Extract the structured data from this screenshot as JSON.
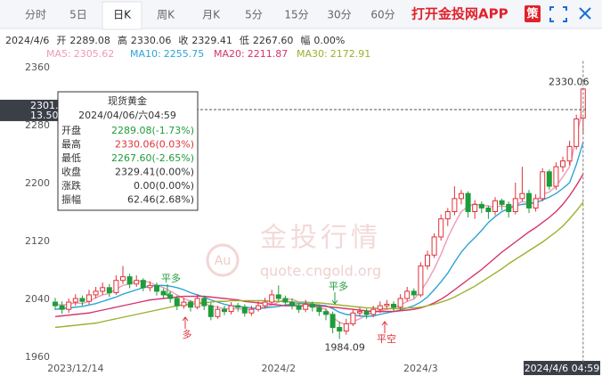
{
  "tabs": {
    "items": [
      "分时",
      "5日",
      "日K",
      "周K",
      "月K",
      "5分",
      "15分",
      "30分",
      "60分"
    ],
    "active": 2,
    "app_link": "打开金投网APP",
    "strategy": "策"
  },
  "chart_data": {
    "type": "candlestick",
    "header": {
      "date": "2024/4/6",
      "items": [
        {
          "label": "开",
          "value": "2289.08"
        },
        {
          "label": "高",
          "value": "2330.06"
        },
        {
          "label": "收",
          "value": "2329.41"
        },
        {
          "label": "低",
          "value": "2267.60"
        },
        {
          "label": "幅",
          "value": "0.00%"
        }
      ]
    },
    "categories": [
      null,
      null,
      null,
      "2023/12/14",
      null,
      null,
      null,
      null,
      null,
      null,
      null,
      null,
      null,
      null,
      null,
      null,
      null,
      null,
      null,
      null,
      null,
      null,
      null,
      null,
      null,
      null,
      null,
      null,
      null,
      null,
      null,
      null,
      null,
      "2024/2",
      null,
      null,
      null,
      null,
      null,
      null,
      null,
      null,
      null,
      null,
      null,
      null,
      null,
      null,
      null,
      null,
      null,
      null,
      null,
      null,
      "2024/3",
      null,
      null,
      null,
      null,
      null,
      null,
      null,
      null,
      null,
      null,
      null,
      null,
      null,
      null,
      null,
      null,
      null,
      null,
      null,
      null,
      null,
      null,
      null,
      "2024/4/6 04:59"
    ],
    "candles": [
      [
        2035,
        2041,
        2024,
        2030
      ],
      [
        2030,
        2036,
        2019,
        2025
      ],
      [
        2025,
        2040,
        2020,
        2035
      ],
      [
        2035,
        2046,
        2030,
        2040
      ],
      [
        2040,
        2044,
        2030,
        2036
      ],
      [
        2036,
        2052,
        2032,
        2045
      ],
      [
        2045,
        2056,
        2040,
        2050
      ],
      [
        2050,
        2062,
        2045,
        2055
      ],
      [
        2055,
        2060,
        2042,
        2048
      ],
      [
        2048,
        2072,
        2045,
        2065
      ],
      [
        2065,
        2085,
        2060,
        2070
      ],
      [
        2070,
        2074,
        2054,
        2060
      ],
      [
        2060,
        2072,
        2056,
        2065
      ],
      [
        2065,
        2068,
        2050,
        2055
      ],
      [
        2055,
        2064,
        2050,
        2058
      ],
      [
        2058,
        2062,
        2044,
        2050
      ],
      [
        2050,
        2054,
        2040,
        2045
      ],
      [
        2045,
        2050,
        2034,
        2040
      ],
      [
        2040,
        2044,
        2024,
        2030
      ],
      [
        2030,
        2041,
        2026,
        2035
      ],
      [
        2035,
        2038,
        2022,
        2028
      ],
      [
        2028,
        2046,
        2025,
        2040
      ],
      [
        2040,
        2044,
        2024,
        2030
      ],
      [
        2030,
        2034,
        2010,
        2015
      ],
      [
        2015,
        2030,
        2012,
        2025
      ],
      [
        2025,
        2030,
        2017,
        2022
      ],
      [
        2022,
        2035,
        2018,
        2030
      ],
      [
        2030,
        2034,
        2022,
        2028
      ],
      [
        2028,
        2032,
        2015,
        2020
      ],
      [
        2020,
        2030,
        2016,
        2025
      ],
      [
        2025,
        2036,
        2022,
        2030
      ],
      [
        2030,
        2041,
        2026,
        2035
      ],
      [
        2035,
        2052,
        2031,
        2045
      ],
      [
        2045,
        2058,
        2036,
        2040
      ],
      [
        2040,
        2044,
        2030,
        2035
      ],
      [
        2035,
        2040,
        2025,
        2030
      ],
      [
        2030,
        2034,
        2020,
        2025
      ],
      [
        2025,
        2038,
        2021,
        2032
      ],
      [
        2032,
        2036,
        2022,
        2028
      ],
      [
        2028,
        2032,
        2016,
        2022
      ],
      [
        2022,
        2026,
        2010,
        2018
      ],
      [
        2018,
        2022,
        1992,
        2000
      ],
      [
        2000,
        2008,
        1984.09,
        1995
      ],
      [
        1995,
        2012,
        1990,
        2005
      ],
      [
        2005,
        2026,
        2002,
        2020
      ],
      [
        2020,
        2028,
        2015,
        2022
      ],
      [
        2022,
        2026,
        2012,
        2018
      ],
      [
        2018,
        2030,
        2014,
        2025
      ],
      [
        2025,
        2036,
        2020,
        2030
      ],
      [
        2030,
        2038,
        2026,
        2032
      ],
      [
        2032,
        2036,
        2022,
        2028
      ],
      [
        2028,
        2046,
        2024,
        2040
      ],
      [
        2040,
        2056,
        2036,
        2050
      ],
      [
        2050,
        2054,
        2040,
        2045
      ],
      [
        2045,
        2090,
        2042,
        2085
      ],
      [
        2085,
        2106,
        2080,
        2100
      ],
      [
        2100,
        2130,
        2096,
        2125
      ],
      [
        2125,
        2156,
        2120,
        2150
      ],
      [
        2150,
        2165,
        2140,
        2160
      ],
      [
        2160,
        2195,
        2155,
        2178
      ],
      [
        2178,
        2190,
        2170,
        2185
      ],
      [
        2185,
        2188,
        2152,
        2160
      ],
      [
        2160,
        2176,
        2150,
        2170
      ],
      [
        2170,
        2174,
        2158,
        2165
      ],
      [
        2165,
        2168,
        2150,
        2160
      ],
      [
        2160,
        2180,
        2155,
        2175
      ],
      [
        2175,
        2178,
        2162,
        2170
      ],
      [
        2170,
        2174,
        2152,
        2160
      ],
      [
        2160,
        2200,
        2156,
        2178
      ],
      [
        2178,
        2222,
        2174,
        2185
      ],
      [
        2185,
        2190,
        2158,
        2165
      ],
      [
        2165,
        2184,
        2160,
        2178
      ],
      [
        2178,
        2220,
        2174,
        2215
      ],
      [
        2215,
        2218,
        2190,
        2195
      ],
      [
        2195,
        2228,
        2190,
        2222
      ],
      [
        2222,
        2236,
        2215,
        2230
      ],
      [
        2230,
        2258,
        2224,
        2250
      ],
      [
        2250,
        2294,
        2246,
        2288
      ],
      [
        2289.08,
        2330.06,
        2267.6,
        2329.41
      ]
    ],
    "up_color": "#e0323a",
    "down_color": "#1f9c3b",
    "series": [
      {
        "name": "MA5:",
        "color": "#ee9ab6",
        "values": [
          2032,
          2031,
          2032,
          2034,
          2033,
          2036,
          2041,
          2045,
          2047,
          2053,
          2058,
          2060,
          2064,
          2064,
          2062,
          2058,
          2055,
          2050,
          2045,
          2040,
          2036,
          2035,
          2033,
          2030,
          2028,
          2026,
          2026,
          2026,
          2025,
          2025,
          2027,
          2028,
          2031,
          2035,
          2039,
          2039,
          2035,
          2032,
          2030,
          2027,
          2025,
          2014,
          2007,
          2004,
          2008,
          2012,
          2017,
          2022,
          2023,
          2025,
          2027,
          2031,
          2036,
          2039,
          2050,
          2064,
          2081,
          2101,
          2124,
          2143,
          2160,
          2167,
          2171,
          2168,
          2168,
          2166,
          2168,
          2166,
          2169,
          2174,
          2172,
          2173,
          2184,
          2187,
          2195,
          2208,
          2222,
          2262,
          2305.62
        ]
      },
      {
        "name": "MA10:",
        "color": "#2ea3d6",
        "values": [
          2025,
          2026,
          2027,
          2028,
          2029,
          2031,
          2033,
          2036,
          2039,
          2042,
          2046,
          2049,
          2052,
          2055,
          2057,
          2058,
          2058,
          2057,
          2055,
          2052,
          2048,
          2045,
          2042,
          2038,
          2035,
          2032,
          2030,
          2029,
          2028,
          2027,
          2026,
          2027,
          2028,
          2029,
          2031,
          2032,
          2033,
          2033,
          2032,
          2031,
          2030,
          2026,
          2021,
          2018,
          2017,
          2016,
          2015,
          2016,
          2018,
          2020,
          2022,
          2024,
          2027,
          2030,
          2035,
          2042,
          2052,
          2063,
          2075,
          2090,
          2104,
          2115,
          2124,
          2134,
          2145,
          2153,
          2160,
          2164,
          2168,
          2170,
          2171,
          2172,
          2176,
          2180,
          2185,
          2192,
          2200,
          2225,
          2255.75
        ]
      },
      {
        "name": "MA20:",
        "color": "#d6336a",
        "values": [
          2015,
          2016,
          2017,
          2018,
          2019,
          2020,
          2022,
          2024,
          2026,
          2028,
          2030,
          2032,
          2034,
          2036,
          2038,
          2039,
          2040,
          2041,
          2042,
          2043,
          2043,
          2043,
          2043,
          2042,
          2041,
          2040,
          2039,
          2038,
          2036,
          2035,
          2034,
          2033,
          2032,
          2031,
          2030,
          2030,
          2030,
          2030,
          2030,
          2030,
          2029,
          2028,
          2027,
          2026,
          2025,
          2024,
          2023,
          2022,
          2022,
          2022,
          2022,
          2023,
          2024,
          2025,
          2027,
          2030,
          2034,
          2039,
          2045,
          2052,
          2059,
          2066,
          2073,
          2080,
          2088,
          2096,
          2104,
          2111,
          2118,
          2125,
          2132,
          2138,
          2145,
          2152,
          2160,
          2170,
          2182,
          2196,
          2211.87
        ]
      },
      {
        "name": "MA30:",
        "color": "#9cb02c",
        "values": [
          2000,
          2001,
          2002,
          2003,
          2004,
          2005,
          2006,
          2008,
          2010,
          2012,
          2014,
          2016,
          2018,
          2020,
          2022,
          2024,
          2026,
          2028,
          2030,
          2031,
          2032,
          2033,
          2034,
          2035,
          2036,
          2036,
          2037,
          2037,
          2037,
          2037,
          2037,
          2037,
          2036,
          2036,
          2036,
          2035,
          2035,
          2035,
          2034,
          2034,
          2033,
          2032,
          2031,
          2030,
          2029,
          2028,
          2027,
          2027,
          2026,
          2026,
          2026,
          2026,
          2027,
          2027,
          2028,
          2030,
          2032,
          2035,
          2038,
          2042,
          2047,
          2052,
          2057,
          2063,
          2069,
          2075,
          2081,
          2088,
          2094,
          2100,
          2106,
          2112,
          2118,
          2125,
          2132,
          2140,
          2150,
          2161,
          2172.91
        ]
      }
    ],
    "ylim": [
      1952,
      2368
    ],
    "yticks": [
      1960,
      2040,
      2120,
      2200,
      2280,
      2360
    ],
    "crosshair": {
      "price": {
        "value": 2301.0,
        "label": "2301.0"
      },
      "change": "13.50"
    },
    "annotations": [
      {
        "text": "平多",
        "color": "#1f9c3b"
      },
      {
        "text": "多",
        "color": "#e0323a"
      },
      {
        "text": "平多",
        "color": "#1f9c3b"
      },
      {
        "text": "平空",
        "color": "#e0323a"
      }
    ],
    "tooltip": {
      "title": "现货黄金",
      "date": "2024/04/06/六04:59",
      "rows": [
        {
          "label": "开盘",
          "value": "2289.08(-1.73%)",
          "color": "#1f9c3b"
        },
        {
          "label": "最高",
          "value": "2330.06(0.03%)",
          "color": "#e0323a"
        },
        {
          "label": "最低",
          "value": "2267.60(-2.65%)",
          "color": "#1f9c3b"
        },
        {
          "label": "收盘",
          "value": "2329.41(0.00%)",
          "color": "#333333"
        },
        {
          "label": "涨跌",
          "value": "0.00(0.00%)",
          "color": "#333333"
        },
        {
          "label": "振幅",
          "value": "62.46(2.68%)",
          "color": "#333333"
        }
      ]
    },
    "watermark": {
      "logo": "Au",
      "title": "金投行情",
      "url": "quote.cngold.org"
    }
  }
}
